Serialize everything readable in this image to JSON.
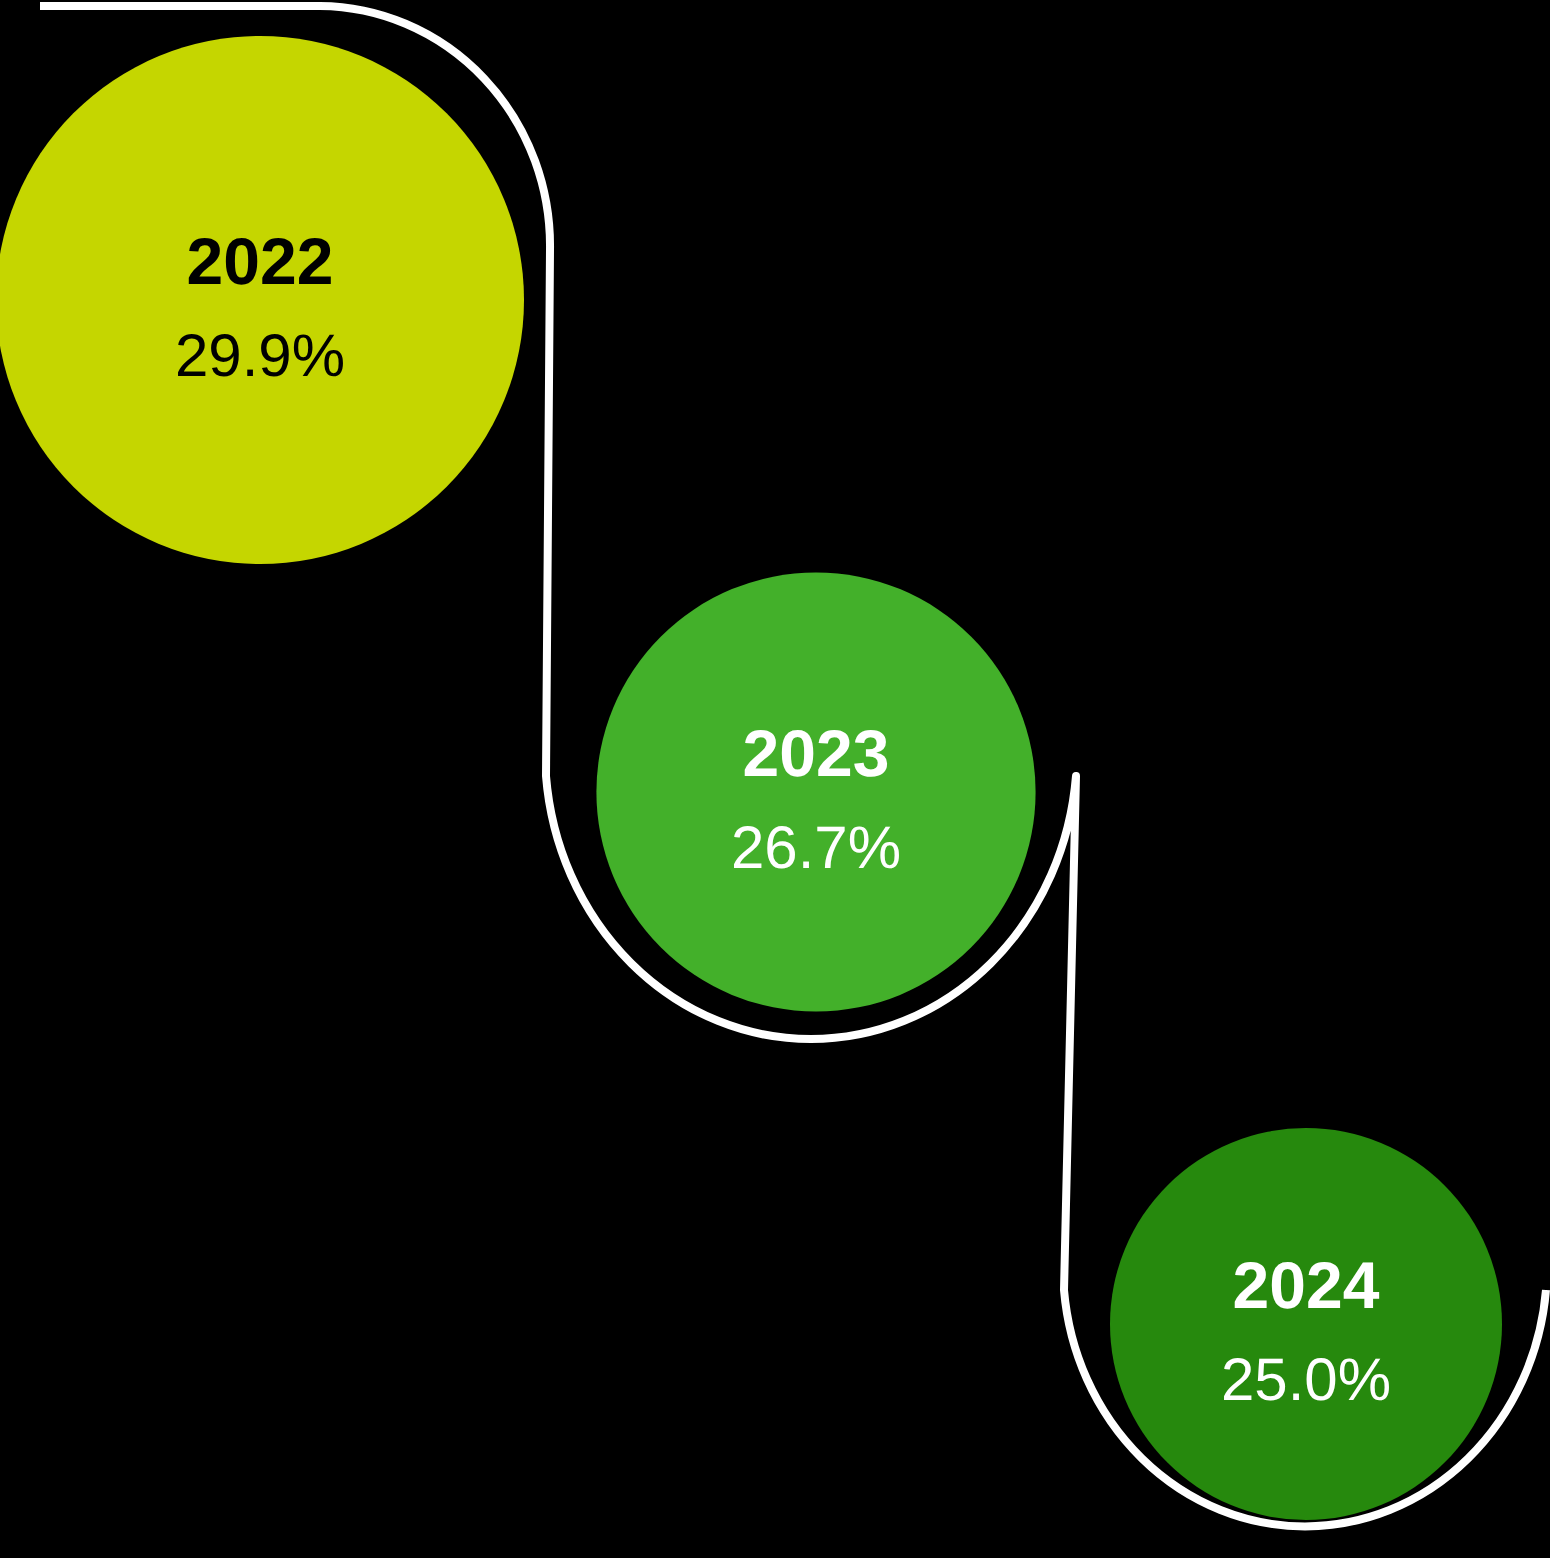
{
  "chart_data": {
    "type": "other",
    "categories": [
      "2022",
      "2023",
      "2024"
    ],
    "values": [
      29.9,
      26.7,
      25.0
    ],
    "value_labels": [
      "29.9%",
      "26.7%",
      "25.0%"
    ],
    "colors": [
      "#c5d600",
      "#43b02a",
      "#26890d"
    ]
  }
}
